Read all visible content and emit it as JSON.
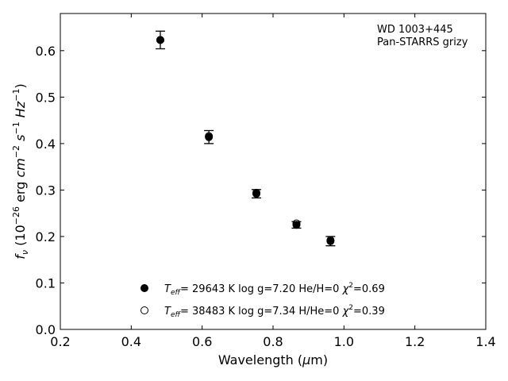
{
  "chart_data": {
    "type": "scatter",
    "annotations": [
      "WD 1003+445",
      "Pan-STARRS grizy"
    ],
    "xlabel_parts": [
      "Wavelength (",
      "μ",
      "m)"
    ],
    "ylabel_parts": [
      "f",
      "ν",
      " (10",
      "−26",
      " erg ",
      "cm",
      "−2",
      " ",
      "s",
      "−1",
      " ",
      "Hz",
      "−1",
      ")"
    ],
    "xlim": [
      0.2,
      1.4
    ],
    "ylim": [
      0.0,
      0.68
    ],
    "xticks": [
      0.2,
      0.4,
      0.6,
      0.8,
      1.0,
      1.2,
      1.4
    ],
    "xtick_labels": [
      "0.2",
      "0.4",
      "0.6",
      "0.8",
      "1.0",
      "1.2",
      "1.4"
    ],
    "yticks": [
      0.0,
      0.1,
      0.2,
      0.3,
      0.4,
      0.5,
      0.6
    ],
    "ytick_labels": [
      "0.0",
      "0.1",
      "0.2",
      "0.3",
      "0.4",
      "0.5",
      "0.6"
    ],
    "grid": false,
    "legend_position": "bottom-center",
    "series": [
      {
        "marker": "filled-circle",
        "x": [
          0.482,
          0.619,
          0.753,
          0.866,
          0.962
        ],
        "y": [
          0.623,
          0.414,
          0.292,
          0.225,
          0.19
        ],
        "yerr": [
          0.019,
          0.014,
          0.009,
          0.007,
          0.01
        ]
      },
      {
        "marker": "open-circle",
        "x": [
          0.482,
          0.619,
          0.753,
          0.866,
          0.962
        ],
        "y": [
          0.623,
          0.416,
          0.294,
          0.228,
          0.192
        ]
      }
    ],
    "legend": [
      {
        "marker": "filled-circle",
        "t_sym": "T",
        "t_sub": "eff",
        "text1": "= 29643 K  log g=7.20  He/H=0  ",
        "chi": "χ",
        "chi_sup": "2",
        "chi_val": "=0.69"
      },
      {
        "marker": "open-circle",
        "t_sym": "T",
        "t_sub": "eff",
        "text1": "= 38483 K  log g=7.34  H/He=0  ",
        "chi": "χ",
        "chi_sup": "2",
        "chi_val": "=0.39"
      }
    ],
    "colors": {
      "marker": "#000000",
      "open_fill": "#ffffff"
    }
  }
}
